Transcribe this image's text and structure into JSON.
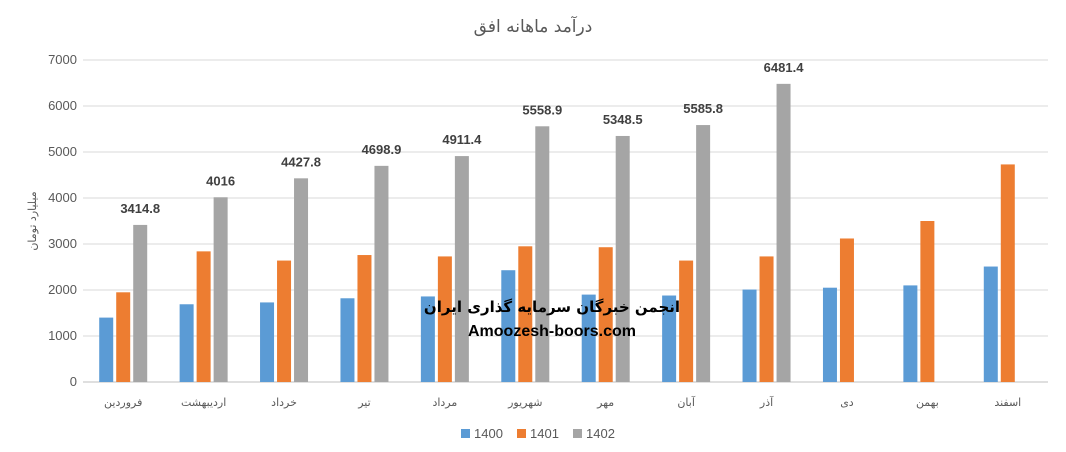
{
  "chart_data": {
    "type": "bar",
    "title": "درآمد ماهانه افق",
    "ylabel": "میلیارد تومان",
    "xlabel": "",
    "ylim": [
      0,
      7000
    ],
    "yticks": [
      0,
      1000,
      2000,
      3000,
      4000,
      5000,
      6000,
      7000
    ],
    "grid": true,
    "legend_position": "bottom",
    "categories": [
      "فروردین",
      "اردیبهشت",
      "خرداد",
      "تیر",
      "مرداد",
      "شهریور",
      "مهر",
      "آبان",
      "آذر",
      "دی",
      "بهمن",
      "اسفند"
    ],
    "series": [
      {
        "name": "1400",
        "color": "#5B9BD5",
        "values": [
          1400,
          1690,
          1730,
          1820,
          1860,
          2430,
          1900,
          1880,
          2010,
          2050,
          2100,
          2510
        ]
      },
      {
        "name": "1401",
        "color": "#ED7D31",
        "values": [
          1950,
          2840,
          2640,
          2760,
          2730,
          2950,
          2930,
          2640,
          2730,
          3120,
          3500,
          4730
        ]
      },
      {
        "name": "1402",
        "color": "#A5A5A5",
        "values": [
          3414.8,
          4016,
          4427.8,
          4698.9,
          4911.4,
          5558.9,
          5348.5,
          5585.8,
          6481.4,
          null,
          null,
          null
        ],
        "data_labels": [
          "3414.8",
          "4016",
          "4427.8",
          "4698.9",
          "4911.4",
          "5558.9",
          "5348.5",
          "5585.8",
          "6481.4"
        ]
      }
    ]
  },
  "watermark": {
    "line1": "انجمن خبرگان سرمایه گذاری ایران",
    "line2": "Amoozesh-boors.com"
  }
}
